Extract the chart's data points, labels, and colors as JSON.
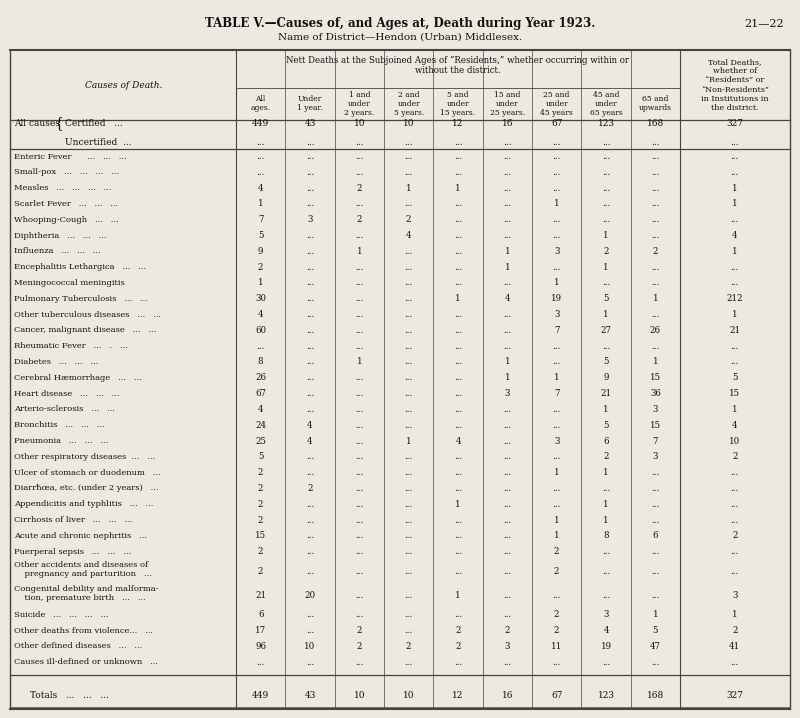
{
  "title": "TABLE V.—Causes of, and Ages at, Death during Year 1923.",
  "page_ref": "21—22",
  "subtitle": "Name of District—Hendon (Urban) Middlesex.",
  "col_header_main": "Nett Deaths at the Subjoined Ages of “Residents,” whether occurring within or\nwithout the district.",
  "col_header_last": "Total Deaths,\nwhether of\n“Residents” or\n“Non-Residents”\nin Institutions in\nthe district.",
  "col_labels": [
    "All\nages.",
    "Under\n1 year.",
    "1 and\nunder\n2 years.",
    "2 and\nunder\n5 years.",
    "5 and\nunder\n15 years.",
    "15 and\nunder\n25 years.",
    "25 and\nunder\n45 years",
    "45 and\nunder\n65 years",
    "65 and\nupwards"
  ],
  "row_label_col": "Causes of Death.",
  "all_causes_cert": [
    "449",
    "43",
    "10",
    "10",
    "12",
    "16",
    "67",
    "123",
    "168",
    "327"
  ],
  "all_causes_uncert": [
    "...",
    "...",
    "...",
    "...",
    "...",
    "...",
    "...",
    "...",
    "...",
    "..."
  ],
  "data_rows": [
    {
      "name": "Enteric Fever      ...   ...   ...",
      "values": [
        "...",
        "...",
        "...",
        "...",
        "...",
        "...",
        "...",
        "...",
        "...",
        "..."
      ]
    },
    {
      "name": "Small-pox   ...   ...   ...   ...",
      "values": [
        "...",
        "...",
        "...",
        "...",
        "...",
        "...",
        "...",
        "...",
        "...",
        "..."
      ]
    },
    {
      "name": "Measles   ...   ...   ...   ...",
      "values": [
        "4",
        "...",
        "2",
        "1",
        "1",
        "...",
        "...",
        "...",
        "...",
        "1"
      ]
    },
    {
      "name": "Scarlet Fever   ...   ...   ...",
      "values": [
        "1",
        "...",
        "...",
        "...",
        "...",
        "...",
        "1",
        "...",
        "...",
        "1"
      ]
    },
    {
      "name": "Whooping-Cough   ...   ...",
      "values": [
        "7",
        "3",
        "2",
        "2",
        "...",
        "...",
        "...",
        "...",
        "...",
        "..."
      ]
    },
    {
      "name": "Diphtheria   ...   ...   ...",
      "values": [
        "5",
        "...",
        "...",
        "4",
        "...",
        "...",
        "...",
        "1",
        "...",
        "4"
      ]
    },
    {
      "name": "Influenza   ...   ...   ...",
      "values": [
        "9",
        "...",
        "1",
        "...",
        "...",
        "1",
        "3",
        "2",
        "2",
        "1"
      ]
    },
    {
      "name": "Encephalitis Lethargica   ...   ...",
      "values": [
        "2",
        "...",
        "...",
        "...",
        "...",
        "1",
        "...",
        "1",
        "...",
        "..."
      ]
    },
    {
      "name": "Meningococcal meningitis",
      "values": [
        "1",
        "...",
        "...",
        "...",
        "...",
        "...",
        "1",
        "...",
        "...",
        "..."
      ]
    },
    {
      "name": "Pulmonary Tuberculosis   ...   ...",
      "values": [
        "30",
        "...",
        "...",
        "...",
        "1",
        "4",
        "19",
        "5",
        "1",
        "212"
      ]
    },
    {
      "name": "Other tuberculous diseases   ...   ...",
      "values": [
        "4",
        "...",
        "...",
        "...",
        "...",
        "...",
        "3",
        "1",
        "...",
        "1"
      ]
    },
    {
      "name": "Cancer, malignant disease   ...   ...",
      "values": [
        "60",
        "...",
        "...",
        "...",
        "...",
        "...",
        "7",
        "27",
        "26",
        "21"
      ]
    },
    {
      "name": "Rheumatic Fever   ...   .   ...",
      "values": [
        "...",
        "...",
        "...",
        "...",
        "...",
        "...",
        "...",
        "...",
        "...",
        "..."
      ]
    },
    {
      "name": "Diabetes   ...   ...   ...",
      "values": [
        "8",
        "...",
        "1",
        "...",
        "...",
        "1",
        "...",
        "5",
        "1",
        "..."
      ]
    },
    {
      "name": "Cerebral Hæmorrhage   ...   ...",
      "values": [
        "26",
        "...",
        "...",
        "...",
        "...",
        "1",
        "1",
        "9",
        "15",
        "5"
      ]
    },
    {
      "name": "Heart disease   ...   ...   ...",
      "values": [
        "67",
        "...",
        "...",
        "...",
        "...",
        "3",
        "7",
        "21",
        "36",
        "15"
      ]
    },
    {
      "name": "Arterio-sclerosis   ...   ...",
      "values": [
        "4",
        "...",
        "...",
        "...",
        "...",
        "...",
        "...",
        "1",
        "3",
        "1"
      ]
    },
    {
      "name": "Bronchitis   ...   ...   ...",
      "values": [
        "24",
        "4",
        "...",
        "...",
        "...",
        "...",
        "...",
        "5",
        "15",
        "4"
      ]
    },
    {
      "name": "Pneumonia   ...   ...   ...",
      "values": [
        "25",
        "4",
        "...",
        "1",
        "4",
        "...",
        "3",
        "6",
        "7",
        "10"
      ]
    },
    {
      "name": "Other respiratory diseases  ...   ...",
      "values": [
        "5",
        "...",
        "...",
        "...",
        "...",
        "...",
        "...",
        "2",
        "3",
        "2"
      ]
    },
    {
      "name": "Ulcer of stomach or duodenum   ...",
      "values": [
        "2",
        "...",
        "...",
        "...",
        "...",
        "...",
        "1",
        "1",
        "...",
        "..."
      ]
    },
    {
      "name": "Diarrħœa, etc. (under 2 years)   ...",
      "values": [
        "2",
        "2",
        "...",
        "...",
        "...",
        "...",
        "...",
        "...",
        "...",
        "..."
      ]
    },
    {
      "name": "Appendicitis and typhlitis   ...   ...",
      "values": [
        "2",
        "...",
        "...",
        "...",
        "1",
        "...",
        "...",
        "1",
        "...",
        "..."
      ]
    },
    {
      "name": "Cirrhosis of liver   ...   ...   ...",
      "values": [
        "2",
        "...",
        "...",
        "...",
        "...",
        "...",
        "1",
        "1",
        "...",
        "..."
      ]
    },
    {
      "name": "Acute and chronic nephritis   ...",
      "values": [
        "15",
        "...",
        "...",
        "...",
        "...",
        "...",
        "1",
        "8",
        "6",
        "2"
      ]
    },
    {
      "name": "Puerperal sepsis   ...   ...   ...",
      "values": [
        "2",
        "...",
        "...",
        "...",
        "...",
        "...",
        "2",
        "...",
        "...",
        "..."
      ]
    },
    {
      "name": "Other accidents and diseases of\n    pregnancy and parturition   ...",
      "values": [
        "2",
        "...",
        "...",
        "...",
        "...",
        "...",
        "2",
        "...",
        "...",
        "..."
      ]
    },
    {
      "name": "Congenital debility and malforma-\n    tion, premature birth   ...   ...",
      "values": [
        "21",
        "20",
        "...",
        "...",
        "1",
        "...",
        "...",
        "...",
        "...",
        "3"
      ]
    },
    {
      "name": "Suicide   ...   ...   ...   ...",
      "values": [
        "6",
        "...",
        "...",
        "...",
        "...",
        "...",
        "2",
        "3",
        "1",
        "1"
      ]
    },
    {
      "name": "Other deaths from violence...   ...",
      "values": [
        "17",
        "...",
        "2",
        "...",
        "2",
        "2",
        "2",
        "4",
        "5",
        "2"
      ]
    },
    {
      "name": "Other defined diseases   ...   ...",
      "values": [
        "96",
        "10",
        "2",
        "2",
        "2",
        "3",
        "11",
        "19",
        "47",
        "41"
      ]
    },
    {
      "name": "Causes ill-defined or unknown   ...",
      "values": [
        "...",
        "...",
        "...",
        "...",
        "...",
        "...",
        "...",
        "...",
        "...",
        "..."
      ]
    }
  ],
  "totals": [
    "449",
    "43",
    "10",
    "10",
    "12",
    "16",
    "67",
    "123",
    "168",
    "327"
  ],
  "bg_color": "#ede9e0",
  "text_color": "#111111",
  "line_color": "#444444"
}
